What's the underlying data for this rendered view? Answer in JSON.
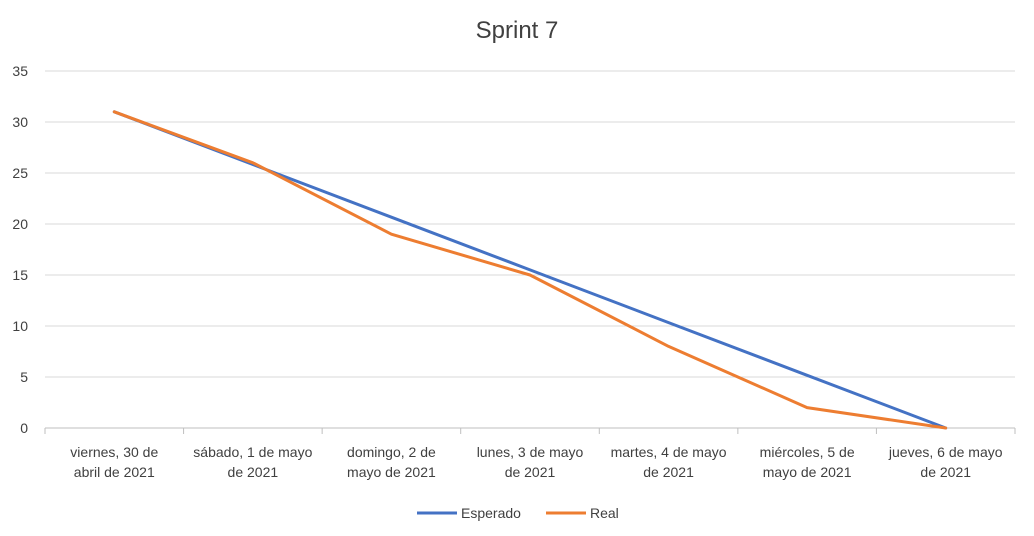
{
  "chart_data": {
    "type": "line",
    "title": "Sprint 7",
    "categories": [
      [
        "viernes, 30 de",
        "abril de 2021"
      ],
      [
        "sábado, 1 de mayo",
        "de 2021"
      ],
      [
        "domingo, 2 de",
        "mayo de 2021"
      ],
      [
        "lunes, 3 de mayo",
        "de 2021"
      ],
      [
        "martes, 4 de mayo",
        "de 2021"
      ],
      [
        "miércoles, 5 de",
        "mayo de 2021"
      ],
      [
        "jueves, 6 de mayo",
        "de 2021"
      ]
    ],
    "series": [
      {
        "name": "Esperado",
        "color": "#4472C4",
        "values": [
          31,
          25.83,
          20.67,
          15.5,
          10.33,
          5.17,
          0
        ]
      },
      {
        "name": "Real",
        "color": "#ED7D31",
        "values": [
          31,
          26,
          19,
          15,
          8,
          2,
          0
        ]
      }
    ],
    "ylim": [
      0,
      35
    ],
    "yticks": [
      "0",
      "5",
      "10",
      "15",
      "20",
      "25",
      "30",
      "35"
    ],
    "grid": true,
    "legend": "bottom"
  }
}
